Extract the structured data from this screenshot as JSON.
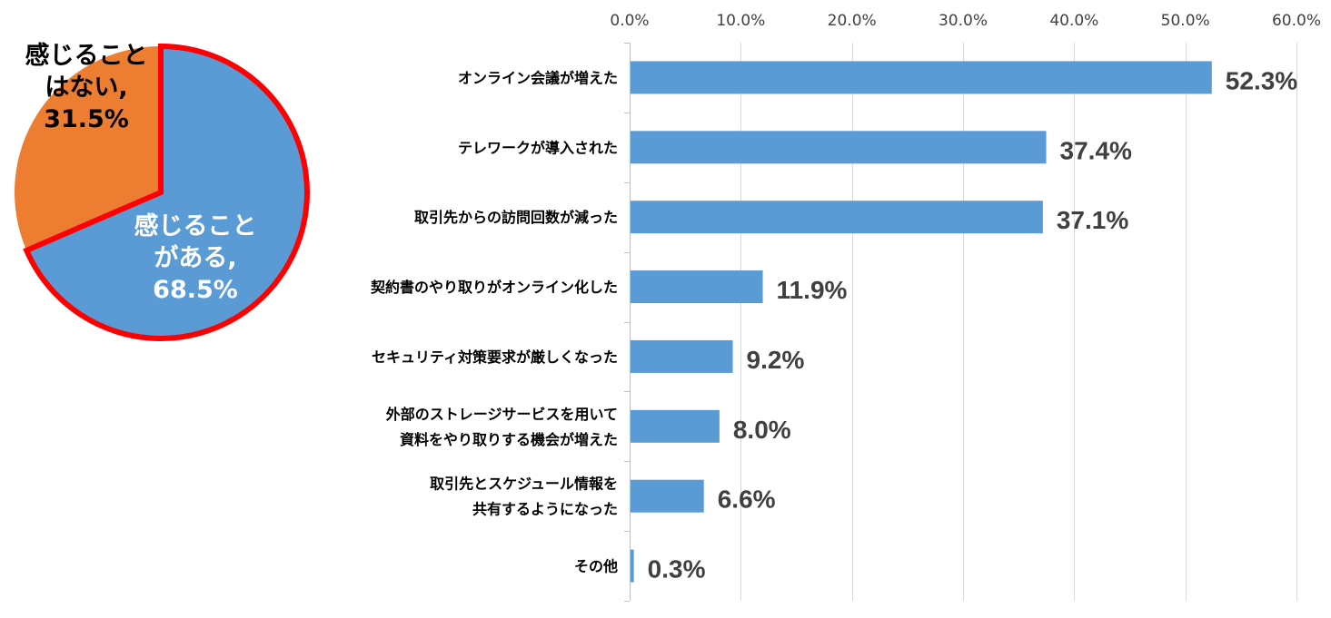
{
  "chart_data": [
    {
      "type": "pie",
      "slices": [
        {
          "label_lines": [
            "感じること",
            "がある,",
            "68.5%"
          ],
          "value": 68.5,
          "color": "#5b9bd5",
          "text_color": "#ffffff"
        },
        {
          "label_lines": [
            "感じること",
            "はない,",
            "31.5%"
          ],
          "value": 31.5,
          "color": "#ed7d31",
          "text_color": "#000000"
        }
      ],
      "border_color": "#ff0000",
      "start": "12 o'clock",
      "direction": "clockwise"
    },
    {
      "type": "bar",
      "orientation": "horizontal",
      "categories": [
        [
          "オンライン会議が増えた"
        ],
        [
          "テレワークが導入された"
        ],
        [
          "取引先からの訪問回数が減った"
        ],
        [
          "契約書のやり取りがオンライン化した"
        ],
        [
          "セキュリティ対策要求が厳しくなった"
        ],
        [
          "外部のストレージサービスを用いて",
          "資料をやり取りする機会が増えた"
        ],
        [
          "取引先とスケジュール情報を",
          "共有するようになった"
        ],
        [
          "その他"
        ]
      ],
      "values": [
        52.3,
        37.4,
        37.1,
        11.9,
        9.2,
        8.0,
        6.6,
        0.3
      ],
      "data_labels": [
        "52.3%",
        "37.4%",
        "37.1%",
        "11.9%",
        "9.2%",
        "8.0%",
        "6.6%",
        "0.3%"
      ],
      "xlim": [
        0,
        60
      ],
      "x_ticks": [
        0,
        10,
        20,
        30,
        40,
        50,
        60
      ],
      "x_tick_labels": [
        "0.0%",
        "10.0%",
        "20.0%",
        "30.0%",
        "40.0%",
        "50.0%",
        "60.0%"
      ],
      "axis_position": "top",
      "grid": true,
      "bar_color": "#5b9bd5",
      "grid_color": "#d9d9d9"
    }
  ]
}
